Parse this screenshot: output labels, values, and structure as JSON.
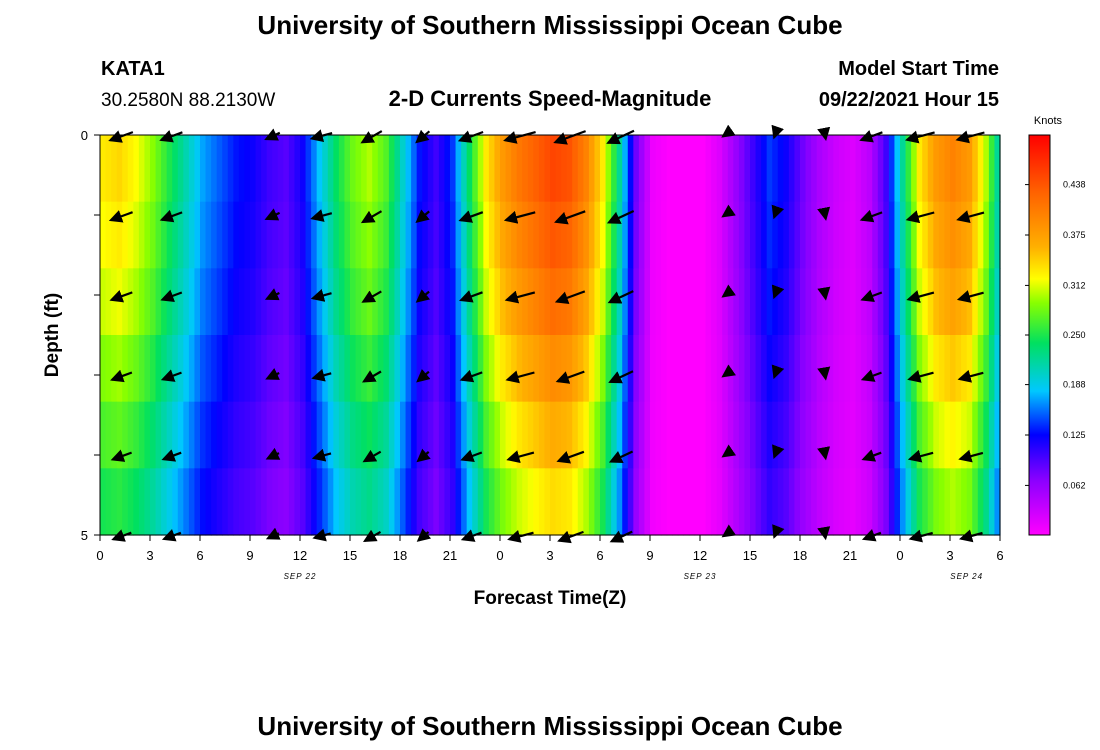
{
  "header": {
    "title_top": "University of Southern Mississippi Ocean Cube",
    "title_bottom": "University of Southern Mississippi Ocean Cube",
    "station": "KATA1",
    "coords": "30.2580N  88.2130W",
    "plot_title": "2-D Currents Speed-Magnitude",
    "model_label": "Model Start Time",
    "model_time": "09/22/2021 Hour 15"
  },
  "colorbar": {
    "units": "Knots",
    "labels": [
      "0.438",
      "0.375",
      "0.312",
      "0.250",
      "0.188",
      "0.125",
      "0.062"
    ],
    "min": 0,
    "max": 0.5
  },
  "chart_data": {
    "type": "heatmap",
    "title": "2-D Currents Speed-Magnitude",
    "xlabel": "Forecast Time(Z)",
    "ylabel": "Depth (ft)",
    "x_ticks": [
      "0",
      "3",
      "6",
      "9",
      "12",
      "15",
      "18",
      "21",
      "0",
      "3",
      "6",
      "9",
      "12",
      "15",
      "18",
      "21",
      "0",
      "3",
      "6"
    ],
    "date_labels": [
      {
        "label": "SEP 22",
        "hour": 12
      },
      {
        "label": "SEP 23",
        "hour": 36
      },
      {
        "label": "SEP 24",
        "hour": 52
      }
    ],
    "y_ticks": [
      "0",
      "5"
    ],
    "xlim_hours": [
      0,
      54
    ],
    "ylim_depth": [
      0,
      5
    ],
    "speed_profile_hours": [
      0,
      1,
      2,
      3,
      4,
      5,
      6,
      7,
      8,
      9,
      10,
      11,
      12,
      13,
      14,
      15,
      16,
      17,
      18,
      19,
      20,
      21,
      22,
      23,
      24,
      25,
      26,
      27,
      28,
      29,
      30,
      31,
      32,
      33,
      34,
      35,
      36,
      37,
      38,
      39,
      40,
      41,
      42,
      43,
      44,
      45,
      46,
      47,
      48,
      49,
      50,
      51,
      52,
      53,
      54
    ],
    "speed_profile_knots": [
      0.33,
      0.34,
      0.32,
      0.29,
      0.25,
      0.21,
      0.17,
      0.15,
      0.13,
      0.12,
      0.1,
      0.09,
      0.12,
      0.18,
      0.24,
      0.28,
      0.3,
      0.27,
      0.2,
      0.13,
      0.1,
      0.14,
      0.24,
      0.33,
      0.38,
      0.41,
      0.43,
      0.45,
      0.44,
      0.4,
      0.33,
      0.22,
      0.08,
      0.01,
      0.0,
      0.0,
      0.0,
      0.02,
      0.06,
      0.1,
      0.14,
      0.12,
      0.08,
      0.05,
      0.03,
      0.02,
      0.04,
      0.1,
      0.22,
      0.33,
      0.38,
      0.4,
      0.38,
      0.3,
      0.18
    ],
    "depth_factor": [
      1.0,
      0.97,
      0.93,
      0.87,
      0.81,
      0.75
    ],
    "vector_times_hours": [
      1.5,
      4.5,
      10.5,
      13.5,
      16.5,
      19.5,
      22.5,
      25.5,
      28.5,
      31.5,
      37.5,
      40.5,
      43.5,
      46.5,
      49.5,
      52.5
    ],
    "vector_depths_ft": [
      0,
      1,
      2,
      3,
      4,
      5
    ],
    "vector_direction_deg": [
      200,
      200,
      205,
      195,
      210,
      220,
      200,
      195,
      200,
      205,
      215,
      250,
      280,
      200,
      195,
      195
    ],
    "vector_length_knots": [
      0.32,
      0.3,
      0.2,
      0.28,
      0.3,
      0.22,
      0.33,
      0.42,
      0.43,
      0.38,
      0.05,
      0.05,
      0.08,
      0.3,
      0.38,
      0.37
    ]
  }
}
